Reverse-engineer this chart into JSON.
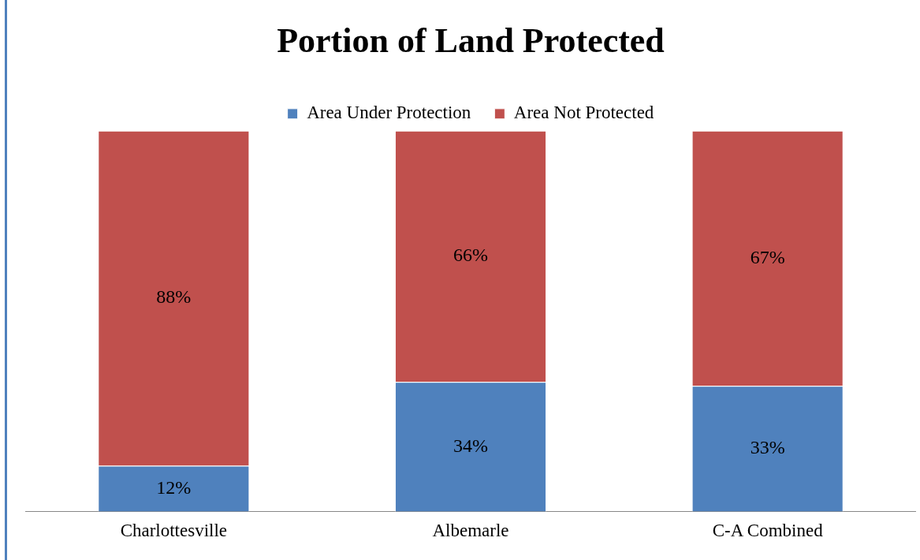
{
  "chart_data": {
    "type": "bar",
    "title": "Portion of Land Protected",
    "categories": [
      "Charlottesville",
      "Albemarle",
      "C-A Combined"
    ],
    "series": [
      {
        "name": "Area Under Protection",
        "color": "#4f81bd",
        "values": [
          12,
          34,
          33
        ],
        "value_labels": [
          "12%",
          "34%",
          "33%"
        ]
      },
      {
        "name": "Area Not Protected",
        "color": "#c0504d",
        "values": [
          88,
          66,
          67
        ],
        "value_labels": [
          "88%",
          "66%",
          "67%"
        ]
      }
    ],
    "stacked": true,
    "legend": "top",
    "grid": false
  }
}
